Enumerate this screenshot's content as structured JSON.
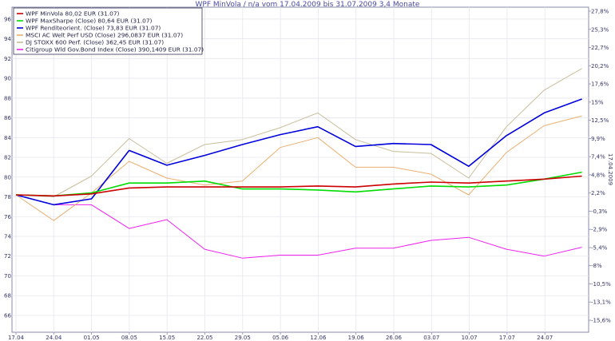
{
  "chart_data": {
    "type": "line",
    "title": "WPF MinVola / n/a vom 17.04.2009 bis 31.07.2009 3,4 Monate",
    "right_axis_title": "17.04.2009",
    "x_labels": [
      "17.04",
      "24.04",
      "01.05",
      "08.05",
      "15.05",
      "22.05",
      "29.05",
      "05.06",
      "12.06",
      "19.06",
      "26.06",
      "03.07",
      "10.07",
      "17.07",
      "24.07"
    ],
    "y_left_ticks": [
      "66",
      "68",
      "70",
      "72",
      "74",
      "76",
      "78",
      "80",
      "82",
      "84",
      "86",
      "88",
      "90",
      "92",
      "94",
      "96"
    ],
    "y_right_ticks": [
      "-15,6%",
      "-13,1%",
      "-10,5%",
      "-8%",
      "-5,4%",
      "-2,9%",
      "-0,3%",
      "2,2%",
      "4,8%",
      "7,4%",
      "9,9%",
      "12,5%",
      "15%",
      "17,6%",
      "20,2%",
      "22,7%",
      "25,3%",
      "27,8%"
    ],
    "y_range": [
      64.3,
      97.2
    ],
    "grid": true,
    "legend_position": "top-left",
    "series": [
      {
        "name": "WPF MinVola 80,02 EUR (31.07)",
        "color": "#cc0000",
        "values": [
          78.2,
          78.1,
          78.3,
          78.9,
          79.0,
          79.0,
          79.0,
          79.0,
          79.1,
          79.0,
          79.3,
          79.5,
          79.4,
          79.6,
          79.8,
          80.1
        ]
      },
      {
        "name": "WPF MaxSharpe (Close) 80,64 EUR (31.07)",
        "color": "#00dd00",
        "values": [
          78.2,
          78.1,
          78.4,
          79.4,
          79.4,
          79.6,
          78.8,
          78.8,
          78.7,
          78.5,
          78.8,
          79.1,
          79.0,
          79.2,
          79.8,
          80.5
        ]
      },
      {
        "name": "WPF Renditeorient. (Close) 73,83 EUR (31.07)",
        "color": "#0000dd",
        "values": [
          78.2,
          77.2,
          77.8,
          82.7,
          81.2,
          82.2,
          83.3,
          84.3,
          85.1,
          83.1,
          83.4,
          83.3,
          81.1,
          84.2,
          86.5,
          87.9
        ]
      },
      {
        "name": "MSCI AC Welt Perf USD (Close) 296,0837 EUR (31.07)",
        "color": "#ebb070",
        "values": [
          78.2,
          75.6,
          78.4,
          81.6,
          79.9,
          79.2,
          79.6,
          83.0,
          84.0,
          81.0,
          81.0,
          80.3,
          78.2,
          82.5,
          85.2,
          86.2
        ]
      },
      {
        "name": "DJ STOXX 600 Perf. (Close) 362,45 EUR (31.07)",
        "color": "#c8be9a",
        "values": [
          78.2,
          78.0,
          80.1,
          83.9,
          81.4,
          83.3,
          83.8,
          85.0,
          86.5,
          83.8,
          82.6,
          82.4,
          79.9,
          85.1,
          88.8,
          91.0
        ]
      },
      {
        "name": "Citigroup Wld Gov.Bond Index (Close) 390,1409 EUR (31.07)",
        "color": "#ee22ee",
        "values": [
          78.2,
          77.2,
          77.2,
          74.8,
          75.7,
          72.7,
          71.8,
          72.1,
          72.1,
          72.8,
          72.8,
          73.6,
          73.9,
          72.7,
          72.0,
          72.9
        ]
      }
    ]
  }
}
